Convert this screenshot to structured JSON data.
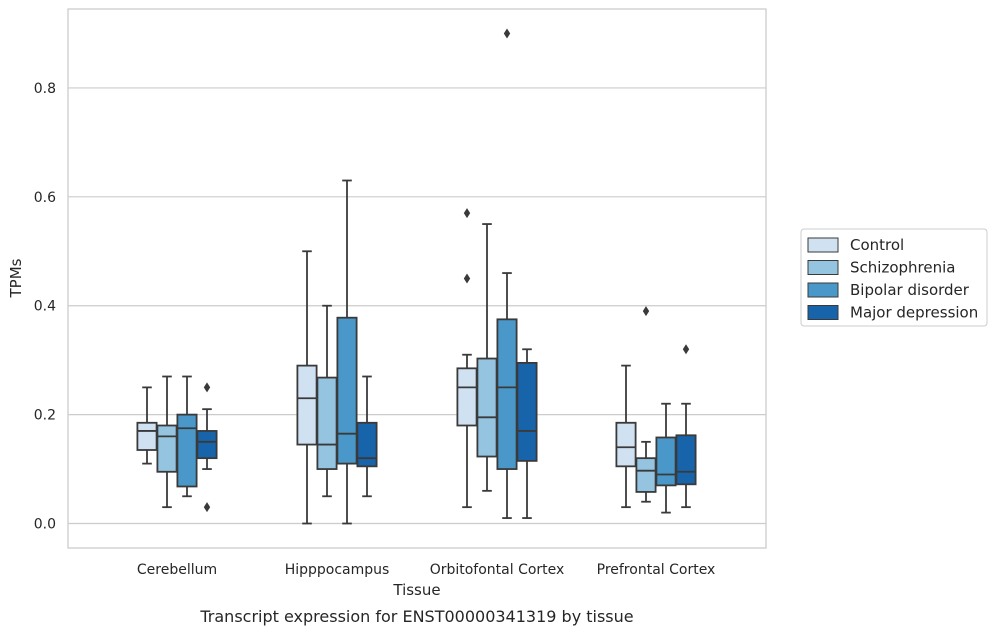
{
  "caption": "Transcript expression for ENST00000341319 by tissue",
  "chart_data": {
    "type": "boxplot",
    "title": "",
    "xlabel": "Tissue",
    "ylabel": "TPMs",
    "ylim": [
      -0.045,
      0.945
    ],
    "yticks": [
      0.0,
      0.2,
      0.4,
      0.6,
      0.8
    ],
    "ytick_labels": [
      "0.0",
      "0.2",
      "0.4",
      "0.6",
      "0.8"
    ],
    "grid": "horizontal",
    "legend_position": "outside-right",
    "categories": [
      "Cerebellum",
      "Hipppocampus",
      "Orbitofontal Cortex",
      "Prefrontal Cortex"
    ],
    "series": [
      {
        "name": "Control",
        "color": "#d0e1f2",
        "boxes": [
          {
            "whislo": 0.11,
            "q1": 0.135,
            "med": 0.17,
            "q3": 0.185,
            "whishi": 0.25,
            "fliers": []
          },
          {
            "whislo": 0.0,
            "q1": 0.145,
            "med": 0.23,
            "q3": 0.29,
            "whishi": 0.5,
            "fliers": []
          },
          {
            "whislo": 0.03,
            "q1": 0.18,
            "med": 0.25,
            "q3": 0.285,
            "whishi": 0.31,
            "fliers": [
              0.45,
              0.57
            ]
          },
          {
            "whislo": 0.03,
            "q1": 0.105,
            "med": 0.14,
            "q3": 0.185,
            "whishi": 0.29,
            "fliers": []
          }
        ]
      },
      {
        "name": "Schizophrenia",
        "color": "#94c4df",
        "boxes": [
          {
            "whislo": 0.03,
            "q1": 0.095,
            "med": 0.16,
            "q3": 0.18,
            "whishi": 0.27,
            "fliers": []
          },
          {
            "whislo": 0.05,
            "q1": 0.1,
            "med": 0.145,
            "q3": 0.268,
            "whishi": 0.4,
            "fliers": []
          },
          {
            "whislo": 0.06,
            "q1": 0.123,
            "med": 0.195,
            "q3": 0.303,
            "whishi": 0.55,
            "fliers": []
          },
          {
            "whislo": 0.04,
            "q1": 0.058,
            "med": 0.097,
            "q3": 0.12,
            "whishi": 0.15,
            "fliers": [
              0.39
            ]
          }
        ]
      },
      {
        "name": "Bipolar disorder",
        "color": "#4a98c9",
        "boxes": [
          {
            "whislo": 0.05,
            "q1": 0.068,
            "med": 0.175,
            "q3": 0.2,
            "whishi": 0.27,
            "fliers": []
          },
          {
            "whislo": 0.0,
            "q1": 0.11,
            "med": 0.165,
            "q3": 0.378,
            "whishi": 0.63,
            "fliers": []
          },
          {
            "whislo": 0.01,
            "q1": 0.1,
            "med": 0.25,
            "q3": 0.375,
            "whishi": 0.46,
            "fliers": [
              0.9
            ]
          },
          {
            "whislo": 0.02,
            "q1": 0.07,
            "med": 0.09,
            "q3": 0.158,
            "whishi": 0.22,
            "fliers": []
          }
        ]
      },
      {
        "name": "Major depression",
        "color": "#1764ab",
        "boxes": [
          {
            "whislo": 0.1,
            "q1": 0.12,
            "med": 0.15,
            "q3": 0.17,
            "whishi": 0.21,
            "fliers": [
              0.03,
              0.25
            ]
          },
          {
            "whislo": 0.05,
            "q1": 0.105,
            "med": 0.12,
            "q3": 0.185,
            "whishi": 0.27,
            "fliers": []
          },
          {
            "whislo": 0.01,
            "q1": 0.115,
            "med": 0.17,
            "q3": 0.295,
            "whishi": 0.32,
            "fliers": []
          },
          {
            "whislo": 0.03,
            "q1": 0.072,
            "med": 0.095,
            "q3": 0.162,
            "whishi": 0.22,
            "fliers": [
              0.32
            ]
          }
        ]
      }
    ]
  }
}
